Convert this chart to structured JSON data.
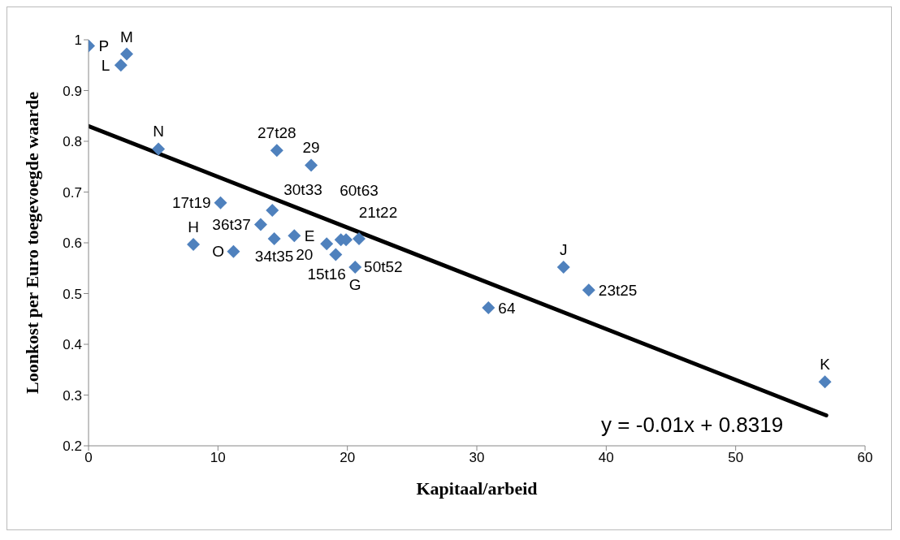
{
  "chart_data": {
    "type": "scatter",
    "xlabel": "Kapitaal/arbeid",
    "ylabel": "Loonkost per Euro toegevoegde waarde",
    "xlim": [
      0,
      60
    ],
    "xticks": [
      0,
      10,
      20,
      30,
      40,
      50,
      60
    ],
    "ylim": [
      0.2,
      1
    ],
    "yticks": [
      {
        "value": 0.2,
        "label": "0.2"
      },
      {
        "value": 0.3,
        "label": "0.3"
      },
      {
        "value": 0.4,
        "label": "0.4"
      },
      {
        "value": 0.5,
        "label": "0.5"
      },
      {
        "value": 0.6,
        "label": "0.6"
      },
      {
        "value": 0.7,
        "label": "0.7"
      },
      {
        "value": 0.8,
        "label": "0.8"
      },
      {
        "value": 0.9,
        "label": "0.9"
      },
      {
        "value": 1,
        "label": "1"
      }
    ],
    "grid": false,
    "legend": false,
    "marker": "diamond",
    "series": [
      {
        "type": "scatter",
        "color": "#4f81bd",
        "x": [
          0,
          2.5,
          2.95,
          5.4,
          14.55,
          17.2,
          10.2,
          14.2,
          13.3,
          14.35,
          15.9,
          11.2,
          8.1,
          18.4,
          19.5,
          19.9,
          20.9,
          19.1,
          20.6,
          30.9,
          36.7,
          38.65,
          56.9
        ],
        "values": [
          0.988,
          0.95,
          0.972,
          0.785,
          0.782,
          0.753,
          0.679,
          0.664,
          0.636,
          0.608,
          0.614,
          0.583,
          0.597,
          0.598,
          0.606,
          0.606,
          0.608,
          0.577,
          0.552,
          0.472,
          0.552,
          0.507,
          0.326
        ]
      },
      {
        "type": "line",
        "color": "#000000",
        "x": [
          0,
          57
        ],
        "values": [
          0.83,
          0.26
        ],
        "marker": "none"
      }
    ],
    "annotations": [
      {
        "text": "P",
        "x": 0,
        "y": 0.988
      },
      {
        "text": "L",
        "x": 2.5,
        "y": 0.95
      },
      {
        "text": "M",
        "x": 2.95,
        "y": 0.972
      },
      {
        "text": "N",
        "x": 5.4,
        "y": 0.785
      },
      {
        "text": "27t28",
        "x": 14.55,
        "y": 0.782
      },
      {
        "text": "29",
        "x": 17.2,
        "y": 0.753
      },
      {
        "text": "17t19",
        "x": 10.2,
        "y": 0.679
      },
      {
        "text": "30t33",
        "x": 14.2,
        "y": 0.664
      },
      {
        "text": "36t37",
        "x": 13.3,
        "y": 0.636
      },
      {
        "text": "34t35",
        "x": 14.35,
        "y": 0.608
      },
      {
        "text": "E",
        "x": 15.9,
        "y": 0.614
      },
      {
        "text": "O",
        "x": 11.2,
        "y": 0.583
      },
      {
        "text": "H",
        "x": 8.1,
        "y": 0.597
      },
      {
        "text": "15t16",
        "x": 18.4,
        "y": 0.598
      },
      {
        "text": "21t22",
        "x": 19.5,
        "y": 0.606
      },
      {
        "text": "50t52",
        "x": 19.9,
        "y": 0.606
      },
      {
        "text": "60t63",
        "x": 20.9,
        "y": 0.608
      },
      {
        "text": "20",
        "x": 19.1,
        "y": 0.577
      },
      {
        "text": "G",
        "x": 20.6,
        "y": 0.552
      },
      {
        "text": "64",
        "x": 30.9,
        "y": 0.472
      },
      {
        "text": "J",
        "x": 36.7,
        "y": 0.552
      },
      {
        "text": "23t25",
        "x": 38.65,
        "y": 0.507
      },
      {
        "text": "K",
        "x": 56.9,
        "y": 0.326
      },
      "y = -0.01x + 0.8319"
    ]
  }
}
